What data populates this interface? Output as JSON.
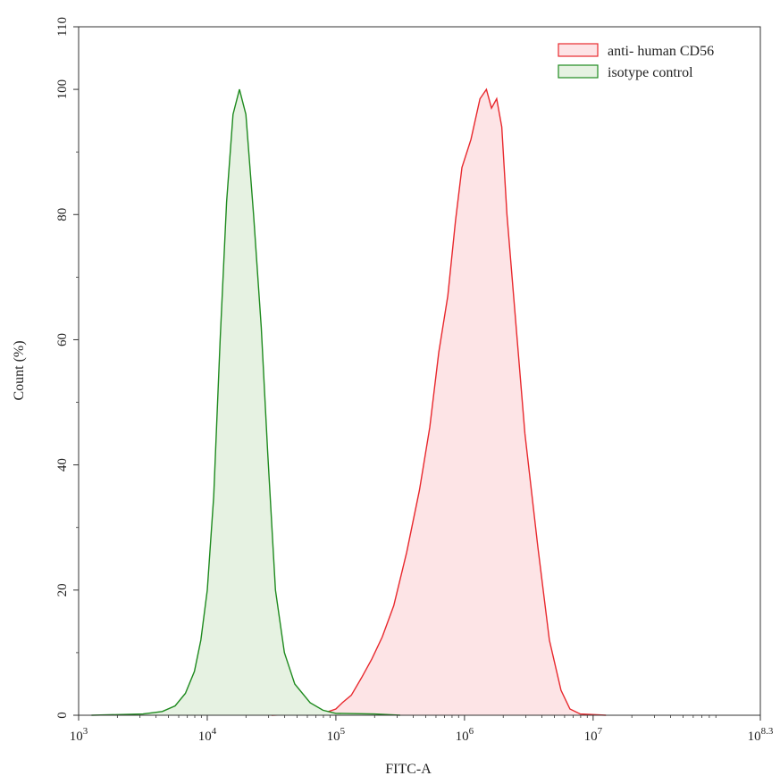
{
  "chart_data": {
    "type": "area",
    "title": "",
    "xlabel": "FITC-A",
    "ylabel": "Count  (%)",
    "xscale": "log10",
    "xlim_log10": [
      3,
      8.3
    ],
    "ylim": [
      0,
      110
    ],
    "x_ticks": [
      {
        "base": "10",
        "exp": "3",
        "value_log10": 3
      },
      {
        "base": "10",
        "exp": "4",
        "value_log10": 4
      },
      {
        "base": "10",
        "exp": "5",
        "value_log10": 5
      },
      {
        "base": "10",
        "exp": "6",
        "value_log10": 6
      },
      {
        "base": "10",
        "exp": "7",
        "value_log10": 7
      },
      {
        "base": "10",
        "exp": "8.3",
        "value_log10": 8.3
      }
    ],
    "y_ticks": [
      "0",
      "20",
      "40",
      "60",
      "80",
      "100",
      "110"
    ],
    "y_tick_values": [
      0,
      20,
      40,
      60,
      80,
      100,
      110
    ],
    "grid": false,
    "legend_position": "top-right",
    "series": [
      {
        "name": "anti- human CD56",
        "stroke": "#e8282d",
        "fill": "#fde4e6",
        "points_log10x": [
          [
            4.5,
            0
          ],
          [
            4.9,
            0.3
          ],
          [
            5.0,
            1.0
          ],
          [
            5.05,
            2.0
          ],
          [
            5.12,
            3.2
          ],
          [
            5.2,
            6.0
          ],
          [
            5.28,
            9.0
          ],
          [
            5.36,
            12.5
          ],
          [
            5.45,
            17.5
          ],
          [
            5.55,
            26.0
          ],
          [
            5.65,
            36.0
          ],
          [
            5.73,
            46.0
          ],
          [
            5.8,
            58.0
          ],
          [
            5.87,
            67.0
          ],
          [
            5.93,
            79.0
          ],
          [
            5.98,
            87.5
          ],
          [
            6.05,
            92.0
          ],
          [
            6.12,
            98.5
          ],
          [
            6.17,
            100.0
          ],
          [
            6.21,
            97.0
          ],
          [
            6.25,
            98.5
          ],
          [
            6.29,
            94.0
          ],
          [
            6.33,
            80.0
          ],
          [
            6.39,
            65.0
          ],
          [
            6.47,
            45.0
          ],
          [
            6.57,
            27.0
          ],
          [
            6.66,
            12.0
          ],
          [
            6.75,
            4.0
          ],
          [
            6.82,
            1.0
          ],
          [
            6.9,
            0.2
          ],
          [
            7.1,
            0
          ]
        ]
      },
      {
        "name": "isotype control",
        "stroke": "#1e8a1e",
        "fill": "#e6f2e2",
        "points_log10x": [
          [
            3.1,
            0
          ],
          [
            3.3,
            0.1
          ],
          [
            3.5,
            0.2
          ],
          [
            3.65,
            0.6
          ],
          [
            3.75,
            1.5
          ],
          [
            3.83,
            3.5
          ],
          [
            3.9,
            7.0
          ],
          [
            3.95,
            12.0
          ],
          [
            4.0,
            20.0
          ],
          [
            4.05,
            35.0
          ],
          [
            4.1,
            60.0
          ],
          [
            4.15,
            82.0
          ],
          [
            4.2,
            96.0
          ],
          [
            4.25,
            100.0
          ],
          [
            4.3,
            96.0
          ],
          [
            4.36,
            80.0
          ],
          [
            4.42,
            62.0
          ],
          [
            4.47,
            42.0
          ],
          [
            4.53,
            20.0
          ],
          [
            4.6,
            10.0
          ],
          [
            4.68,
            5.0
          ],
          [
            4.8,
            2.0
          ],
          [
            4.9,
            0.8
          ],
          [
            5.0,
            0.3
          ],
          [
            5.3,
            0.2
          ],
          [
            5.5,
            0
          ]
        ]
      }
    ]
  }
}
